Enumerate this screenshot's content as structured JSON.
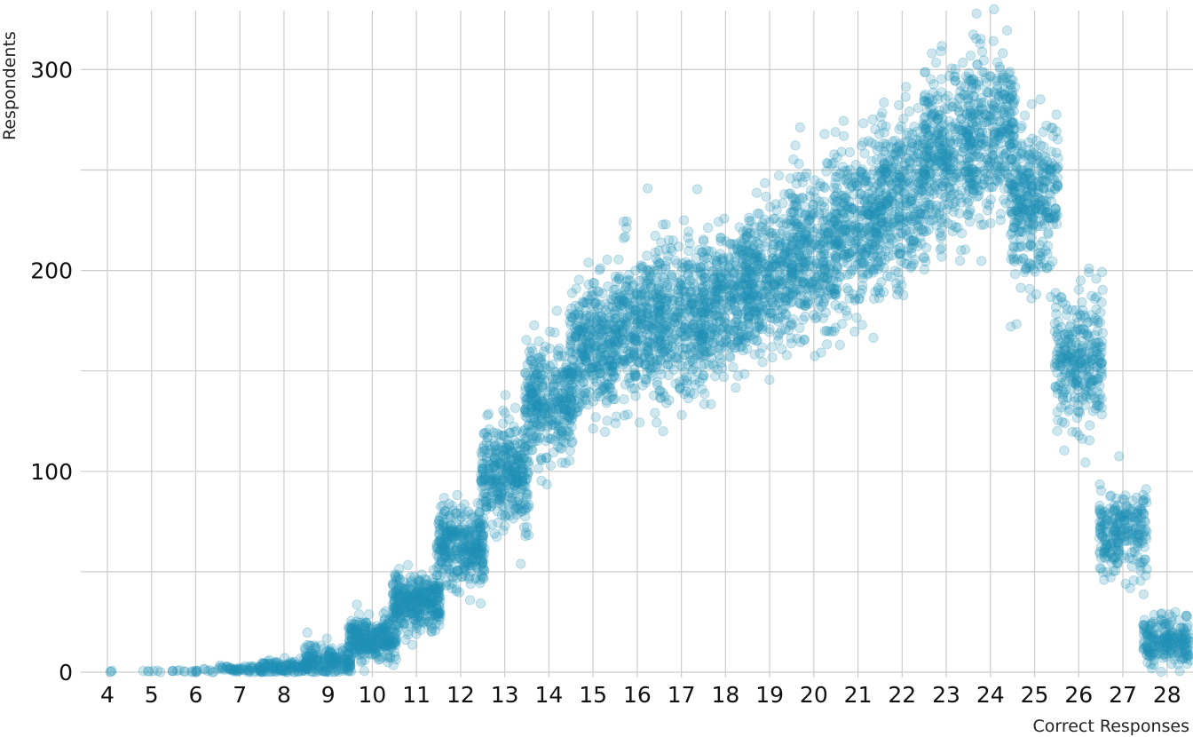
{
  "chart_data": {
    "type": "scatter",
    "subtype": "jittered strip plot",
    "title": "",
    "xlabel": "Correct Responses",
    "ylabel": "Respondents",
    "categories": [
      4,
      5,
      6,
      7,
      8,
      9,
      10,
      11,
      12,
      13,
      14,
      15,
      16,
      17,
      18,
      19,
      20,
      21,
      22,
      23,
      24,
      25,
      26,
      27,
      28
    ],
    "cluster_center_values": [
      0.3,
      0.5,
      0.8,
      1.5,
      2.5,
      6,
      16,
      34,
      63,
      99,
      135,
      161,
      172,
      177,
      185,
      197,
      210,
      221,
      237,
      257,
      266,
      237,
      155,
      69,
      15
    ],
    "cluster_spread_sd": [
      0.3,
      0.4,
      0.6,
      0.8,
      1.5,
      3,
      4.5,
      6,
      8,
      10,
      11,
      13,
      15,
      16,
      14,
      15,
      16,
      16,
      17,
      18,
      17,
      16,
      14,
      9,
      5
    ],
    "yticks": [
      0,
      100,
      200,
      300
    ],
    "ygrid": [
      0,
      50,
      100,
      150,
      200,
      250,
      300
    ],
    "ylim": [
      0,
      328
    ],
    "x_tick_labels": [
      "4",
      "5",
      "6",
      "7",
      "8",
      "9",
      "10",
      "11",
      "12",
      "13",
      "14",
      "15",
      "16",
      "17",
      "18",
      "19",
      "20",
      "21",
      "22",
      "23",
      "24",
      "25",
      "26",
      "27",
      "28"
    ],
    "grid": true,
    "legend": null,
    "point_color": "#2290b5",
    "point_opacity": 0.22
  },
  "axes": {
    "x_title": "Correct Responses",
    "y_title": "Respondents",
    "y_tick_labels": [
      "0",
      "100",
      "200",
      "300"
    ]
  }
}
